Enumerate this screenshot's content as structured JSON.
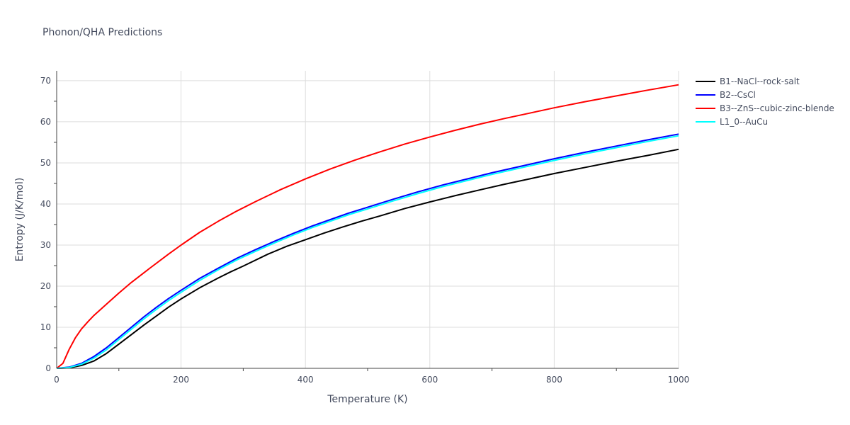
{
  "chart_data": {
    "type": "line",
    "title": "Phonon/QHA Predictions",
    "xlabel": "Temperature (K)",
    "ylabel": "Entropy (J/K/mol)",
    "xlim": [
      0,
      1000
    ],
    "ylim": [
      0,
      72
    ],
    "xticks": [
      0,
      200,
      400,
      600,
      800,
      1000
    ],
    "yticks": [
      0,
      10,
      20,
      30,
      40,
      50,
      60,
      70
    ],
    "grid": true,
    "legend_position": "right",
    "series": [
      {
        "name": "B1--NaCl--rock-salt",
        "color": "#000000",
        "x": [
          0,
          20,
          40,
          60,
          80,
          100,
          120,
          140,
          160,
          180,
          200,
          230,
          260,
          280,
          300,
          340,
          370,
          400,
          430,
          460,
          490,
          520,
          560,
          600,
          640,
          680,
          720,
          760,
          800,
          850,
          900,
          950,
          1000
        ],
        "y": [
          0,
          0.1,
          0.7,
          1.8,
          3.6,
          5.9,
          8.2,
          10.5,
          12.7,
          14.9,
          16.9,
          19.6,
          22.0,
          23.5,
          24.9,
          27.8,
          29.7,
          31.3,
          32.9,
          34.4,
          35.8,
          37.1,
          38.9,
          40.5,
          42.0,
          43.4,
          44.8,
          46.1,
          47.4,
          48.9,
          50.4,
          51.8,
          53.3
        ]
      },
      {
        "name": "B2--CsCl",
        "color": "#0000ff",
        "x": [
          0,
          20,
          40,
          60,
          80,
          100,
          120,
          140,
          160,
          180,
          200,
          230,
          260,
          290,
          320,
          350,
          380,
          410,
          440,
          470,
          500,
          540,
          580,
          620,
          660,
          700,
          750,
          800,
          850,
          900,
          950,
          1000
        ],
        "y": [
          0,
          0.3,
          1.2,
          2.9,
          5.0,
          7.5,
          10.0,
          12.5,
          14.8,
          17.0,
          19.0,
          21.9,
          24.4,
          26.8,
          28.9,
          30.9,
          32.8,
          34.6,
          36.2,
          37.8,
          39.2,
          41.1,
          42.9,
          44.6,
          46.1,
          47.6,
          49.3,
          51.0,
          52.6,
          54.1,
          55.6,
          57.0
        ]
      },
      {
        "name": "B3--ZnS--cubic-zinc-blende",
        "color": "#ff0000",
        "x": [
          0,
          10,
          20,
          30,
          40,
          50,
          60,
          80,
          100,
          120,
          150,
          180,
          200,
          230,
          260,
          290,
          320,
          360,
          400,
          440,
          480,
          520,
          560,
          600,
          640,
          680,
          720,
          760,
          800,
          850,
          900,
          950,
          1000
        ],
        "y": [
          0,
          1.2,
          4.6,
          7.4,
          9.6,
          11.3,
          12.9,
          15.6,
          18.3,
          20.9,
          24.4,
          27.8,
          30.0,
          33.1,
          35.8,
          38.3,
          40.6,
          43.5,
          46.1,
          48.5,
          50.7,
          52.7,
          54.6,
          56.3,
          57.9,
          59.4,
          60.8,
          62.1,
          63.4,
          64.9,
          66.3,
          67.7,
          69.0
        ]
      },
      {
        "name": "L1_0--AuCu",
        "color": "#00ffff",
        "x": [
          0,
          20,
          40,
          60,
          80,
          100,
          120,
          140,
          160,
          180,
          200,
          230,
          260,
          290,
          320,
          350,
          380,
          410,
          440,
          470,
          500,
          540,
          580,
          620,
          660,
          700,
          750,
          800,
          850,
          900,
          950,
          1000
        ],
        "y": [
          0,
          0.2,
          1.0,
          2.5,
          4.5,
          7.0,
          9.5,
          12.0,
          14.3,
          16.5,
          18.5,
          21.4,
          24.0,
          26.4,
          28.5,
          30.5,
          32.4,
          34.2,
          35.8,
          37.4,
          38.8,
          40.7,
          42.5,
          44.2,
          45.7,
          47.2,
          48.9,
          50.6,
          52.2,
          53.7,
          55.2,
          56.6
        ]
      }
    ]
  }
}
